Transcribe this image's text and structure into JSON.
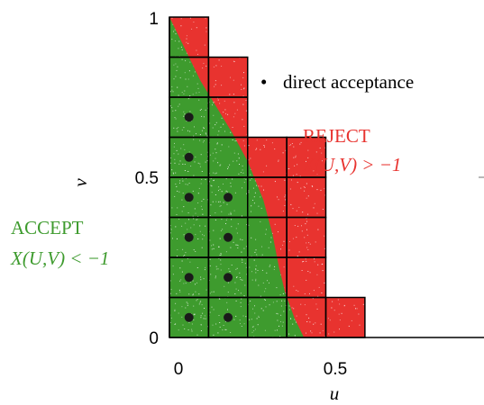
{
  "axes": {
    "x_label": "u",
    "y_label": "v",
    "x_ticks": [
      "0",
      "0.5"
    ],
    "y_ticks": [
      "0",
      "0.5",
      "1"
    ],
    "x_range": [
      0,
      0.75
    ],
    "y_range": [
      0,
      1
    ]
  },
  "legend": {
    "marker": "•",
    "text": "direct acceptance"
  },
  "regions": {
    "reject": {
      "title": "REJECT",
      "condition": "X(U,V) > −1",
      "color": "#e8332f"
    },
    "accept": {
      "title": "ACCEPT",
      "condition": "X(U,V) < −1",
      "color": "#3e9b2e"
    }
  },
  "grid": {
    "cell_size": 0.125,
    "column_heights": [
      8,
      7,
      5,
      5,
      1
    ],
    "accept_boundary": [
      [
        0,
        1
      ],
      [
        0.05,
        0.9
      ],
      [
        0.1,
        0.8
      ],
      [
        0.15,
        0.72
      ],
      [
        0.2,
        0.64
      ],
      [
        0.25,
        0.55
      ],
      [
        0.3,
        0.43
      ],
      [
        0.33,
        0.32
      ],
      [
        0.35,
        0.22
      ],
      [
        0.37,
        0.14
      ],
      [
        0.4,
        0.06
      ],
      [
        0.43,
        0
      ]
    ],
    "direct_acceptance_cells": [
      [
        0,
        0
      ],
      [
        0,
        1
      ],
      [
        0,
        2
      ],
      [
        0,
        3
      ],
      [
        0,
        4
      ],
      [
        0,
        5
      ],
      [
        1,
        0
      ],
      [
        1,
        1
      ],
      [
        1,
        2
      ],
      [
        1,
        3
      ]
    ]
  }
}
